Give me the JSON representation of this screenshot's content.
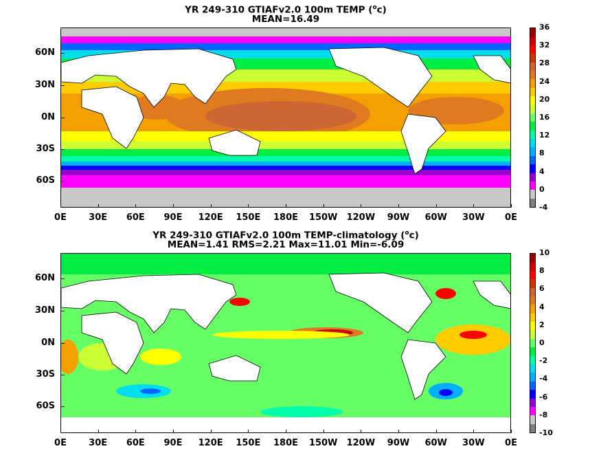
{
  "panels": [
    {
      "id": "temp",
      "title_line1_pre": "YR 249-310 GTIAFv2.0 100m TEMP (",
      "title_sup": "o",
      "title_line1_post": "c)",
      "title_line2": "MEAN=16.49",
      "colorbar_labels": [
        "36",
        "32",
        "28",
        "24",
        "20",
        "16",
        "12",
        "8",
        "4",
        "0",
        "-4"
      ],
      "colorbar_colors": [
        "#808080",
        "#c8c8c8",
        "#ff00ff",
        "#9900cc",
        "#0000ff",
        "#0066ff",
        "#00b0ff",
        "#00ddee",
        "#00ffaa",
        "#00ee44",
        "#66ff66",
        "#ccff33",
        "#ffff00",
        "#ffcc00",
        "#f4a000",
        "#e07a20",
        "#cc6633",
        "#cc3300",
        "#ff0000",
        "#cc0000",
        "#990000"
      ]
    },
    {
      "id": "anom",
      "title_line1_pre": "YR 249-310 GTIAFv2.0 100m TEMP-climatology (",
      "title_sup": "o",
      "title_line1_post": "c)",
      "title_line2": "MEAN=1.41   RMS=2.21   Max=11.01   Min=-6.09",
      "colorbar_labels": [
        "10",
        "8",
        "6",
        "4",
        "2",
        "0",
        "-2",
        "-4",
        "-6",
        "-8",
        "-10"
      ],
      "colorbar_colors": [
        "#808080",
        "#c8c8c8",
        "#ff00ff",
        "#9900cc",
        "#0000ff",
        "#0066ff",
        "#00b0ff",
        "#00ddee",
        "#00ffaa",
        "#00ee44",
        "#66ff66",
        "#ccff33",
        "#ffff00",
        "#ffcc00",
        "#f4a000",
        "#e07a20",
        "#cc6633",
        "#cc3300",
        "#ff0000",
        "#cc0000",
        "#990000"
      ]
    }
  ],
  "lat_labels": [
    "60N",
    "30N",
    "0N",
    "30S",
    "60S"
  ],
  "lon_labels": [
    "0E",
    "30E",
    "60E",
    "90E",
    "120E",
    "150E",
    "180E",
    "150W",
    "120W",
    "90W",
    "60W",
    "30W",
    "0E"
  ]
}
